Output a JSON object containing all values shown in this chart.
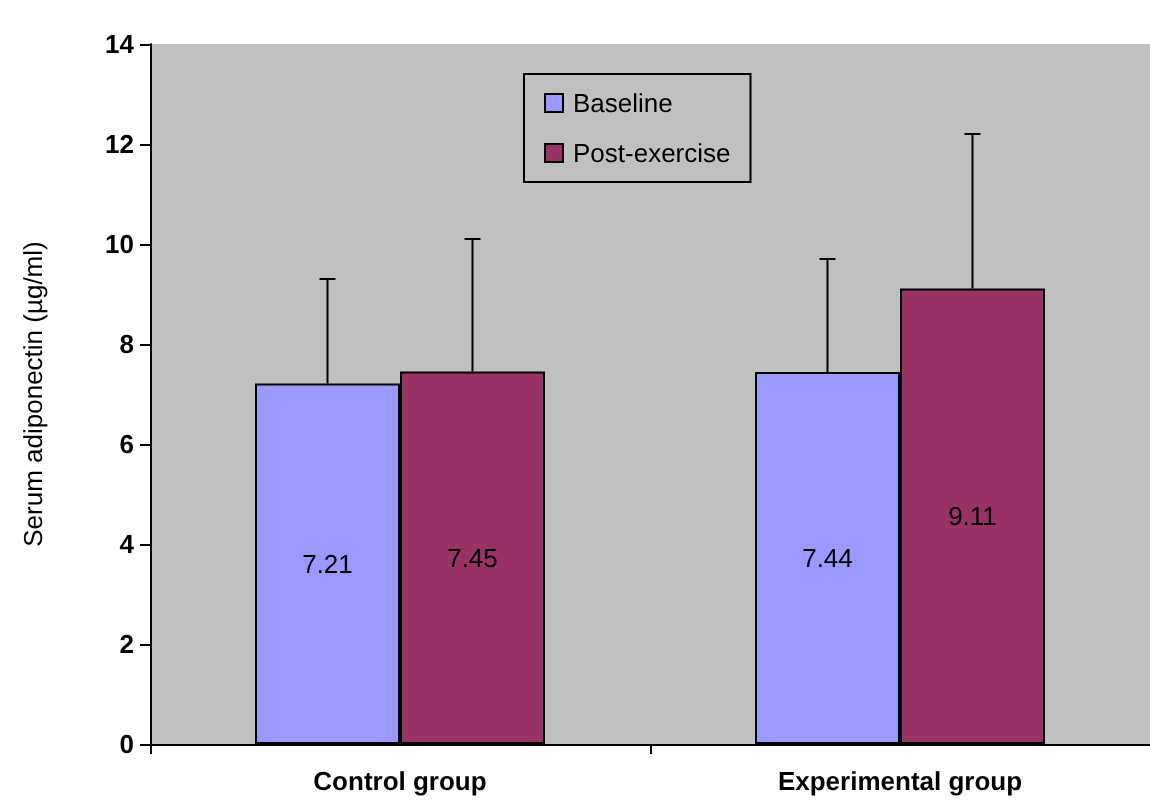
{
  "chart_data": {
    "type": "bar",
    "ylabel": "Serum adiponectin (µg/ml)",
    "categories": [
      "Control group",
      "Experimental group"
    ],
    "series": [
      {
        "name": "Baseline",
        "color": "#9999ff",
        "values": [
          7.21,
          7.44
        ],
        "errors": [
          [
            7.21,
            9.3
          ],
          [
            7.44,
            9.7
          ]
        ]
      },
      {
        "name": "Post-exercise",
        "color": "#993366",
        "values": [
          7.45,
          9.11
        ],
        "errors": [
          [
            7.45,
            10.1
          ],
          [
            9.11,
            12.2
          ]
        ]
      }
    ],
    "ylim": [
      0,
      14
    ],
    "yticks": [
      0,
      2,
      4,
      6,
      8,
      10,
      12,
      14
    ],
    "grid": false,
    "legend": "top",
    "data_labels": true
  }
}
